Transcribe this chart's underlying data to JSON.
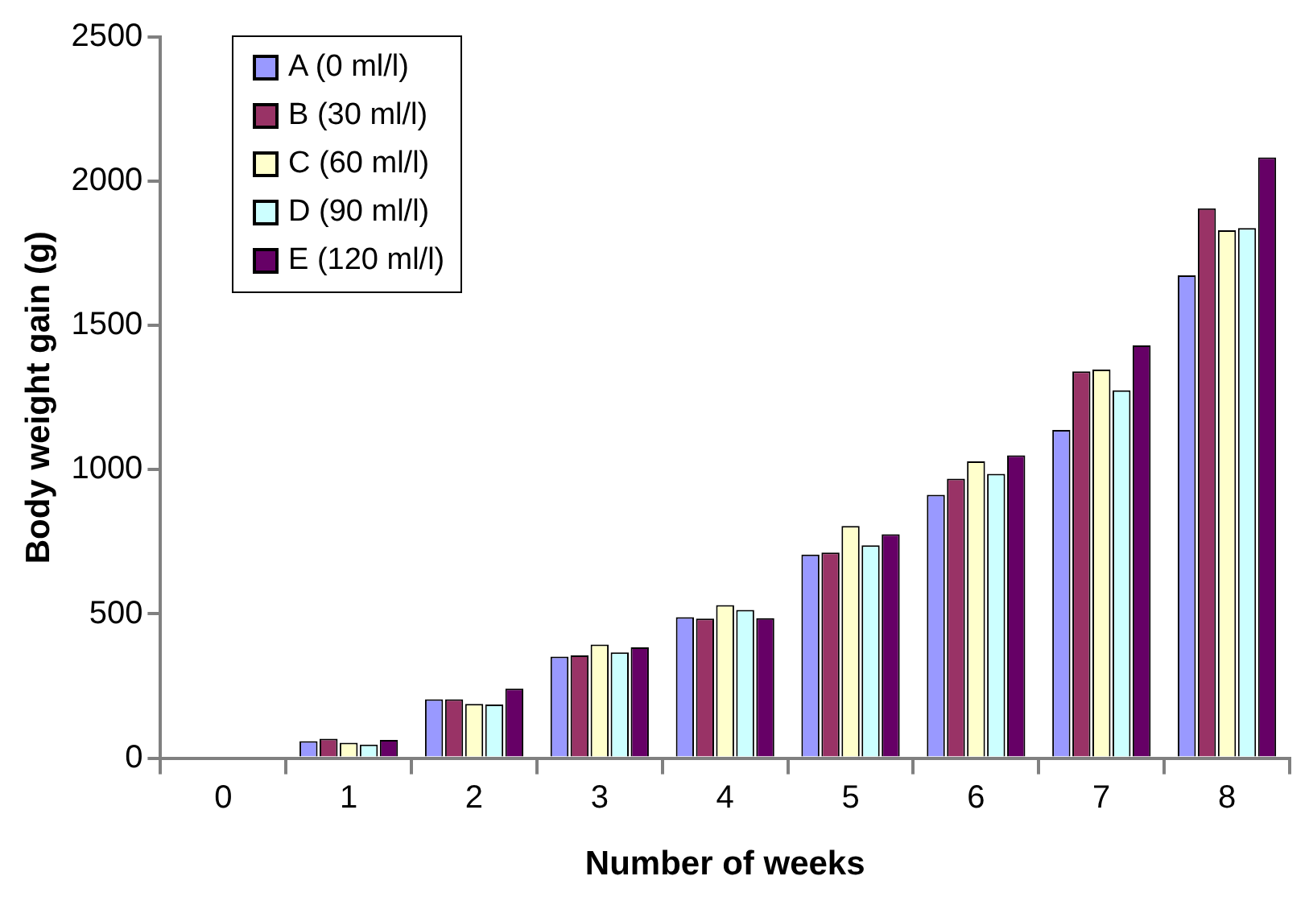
{
  "chart_data": {
    "type": "bar",
    "xlabel": "Number of weeks",
    "ylabel": "Body weight gain (g)",
    "categories": [
      "0",
      "1",
      "2",
      "3",
      "4",
      "5",
      "6",
      "7",
      "8"
    ],
    "series": [
      {
        "name": "A (0 ml/l)",
        "color": "#9999ff",
        "values": [
          0,
          59,
          204,
          352,
          489,
          706,
          913,
          1138,
          1674
        ]
      },
      {
        "name": "B (30 ml/l)",
        "color": "#993366",
        "values": [
          0,
          67,
          204,
          356,
          484,
          713,
          969,
          1341,
          1906
        ]
      },
      {
        "name": "C (60 ml/l)",
        "color": "#ffffcc",
        "values": [
          0,
          53,
          188,
          394,
          531,
          805,
          1029,
          1347,
          1830
        ]
      },
      {
        "name": "D (90 ml/l)",
        "color": "#ccffff",
        "values": [
          0,
          47,
          186,
          367,
          514,
          738,
          986,
          1275,
          1838
        ]
      },
      {
        "name": "E (120 ml/l)",
        "color": "#660066",
        "values": [
          0,
          63,
          241,
          384,
          485,
          776,
          1050,
          1431,
          2083
        ]
      }
    ],
    "ylim": [
      0,
      2500
    ],
    "yticks": [
      0,
      500,
      1000,
      1500,
      2000,
      2500
    ],
    "grid": false,
    "legend": "top left"
  }
}
